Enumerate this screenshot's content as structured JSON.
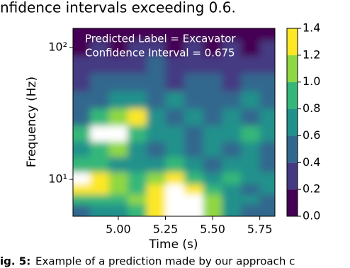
{
  "text_top": "nfidence intervals exceeding 0.6.",
  "caption": {
    "label": "ig. 5:",
    "text": "Example of a prediction made by our approach c"
  },
  "chart_data": {
    "type": "heatmap",
    "annotations": [
      "Predicted Label = Excavator",
      "Confidence Interval = 0.675"
    ],
    "xlabel": "Time (s)",
    "ylabel": "Frequency (Hz)",
    "xlim": [
      4.76,
      5.83
    ],
    "ylim": [
      5.25,
      140
    ],
    "yscale": "log",
    "xticks": [
      {
        "value": 5.0,
        "label": "5.00"
      },
      {
        "value": 5.25,
        "label": "5.25"
      },
      {
        "value": 5.5,
        "label": "5.50"
      },
      {
        "value": 5.75,
        "label": "5.75"
      }
    ],
    "yticks": [
      {
        "value": 10,
        "label": "10¹"
      },
      {
        "value": 100,
        "label": "10²"
      }
    ],
    "x": [
      4.8,
      4.9,
      5.0,
      5.1,
      5.2,
      5.3,
      5.4,
      5.5,
      5.6,
      5.7,
      5.8
    ],
    "y": [
      6,
      7,
      8.5,
      10,
      13,
      17,
      22,
      30,
      40,
      55,
      75,
      100,
      130
    ],
    "z": [
      [
        0.5,
        0.6,
        0.7,
        0.9,
        1.2,
        1.5,
        1.5,
        1.0,
        0.6,
        0.5,
        0.4
      ],
      [
        0.8,
        0.9,
        0.8,
        1.0,
        1.3,
        1.6,
        1.5,
        1.1,
        0.7,
        0.6,
        0.5
      ],
      [
        1.3,
        1.2,
        1.0,
        0.9,
        1.2,
        1.5,
        1.2,
        0.8,
        0.6,
        0.5,
        0.6
      ],
      [
        1.5,
        1.3,
        1.0,
        0.8,
        1.0,
        1.4,
        0.9,
        0.7,
        0.8,
        0.7,
        0.6
      ],
      [
        0.9,
        0.8,
        0.7,
        0.6,
        0.7,
        0.9,
        0.6,
        0.5,
        0.6,
        0.7,
        0.5
      ],
      [
        0.7,
        0.9,
        1.0,
        0.6,
        0.5,
        0.6,
        0.5,
        0.6,
        0.5,
        0.6,
        0.5
      ],
      [
        0.8,
        1.5,
        1.5,
        0.9,
        0.6,
        0.6,
        0.5,
        0.7,
        0.6,
        0.8,
        0.6
      ],
      [
        0.5,
        0.9,
        1.0,
        1.3,
        0.6,
        0.5,
        0.6,
        0.5,
        0.7,
        0.5,
        0.6
      ],
      [
        0.4,
        0.5,
        0.6,
        0.6,
        0.5,
        0.6,
        0.5,
        0.4,
        0.5,
        0.6,
        0.4
      ],
      [
        0.3,
        0.4,
        0.4,
        0.5,
        0.4,
        0.3,
        0.5,
        0.4,
        0.3,
        0.4,
        0.5
      ],
      [
        0.2,
        0.3,
        0.2,
        0.3,
        0.4,
        0.2,
        0.3,
        0.2,
        0.3,
        0.2,
        0.3
      ],
      [
        0.1,
        0.2,
        0.1,
        0.2,
        0.2,
        0.1,
        0.2,
        0.1,
        0.2,
        0.1,
        0.2
      ],
      [
        0.1,
        0.1,
        0.1,
        0.1,
        0.1,
        0.1,
        0.1,
        0.1,
        0.1,
        0.1,
        0.1
      ]
    ],
    "levels": [
      {
        "value": 0,
        "label": "0.0"
      },
      {
        "value": 0.2,
        "label": "0.2"
      },
      {
        "value": 0.4,
        "label": "0.4"
      },
      {
        "value": 0.6,
        "label": "0.6"
      },
      {
        "value": 0.8,
        "label": "0.8"
      },
      {
        "value": 1.0,
        "label": "1.0"
      },
      {
        "value": 1.2,
        "label": "1.2"
      },
      {
        "value": 1.4,
        "label": "1.4"
      }
    ],
    "colors": [
      "#440154",
      "#443a83",
      "#31688e",
      "#21918c",
      "#35b779",
      "#90d743",
      "#fde725"
    ],
    "over_color": "#ffffff"
  }
}
